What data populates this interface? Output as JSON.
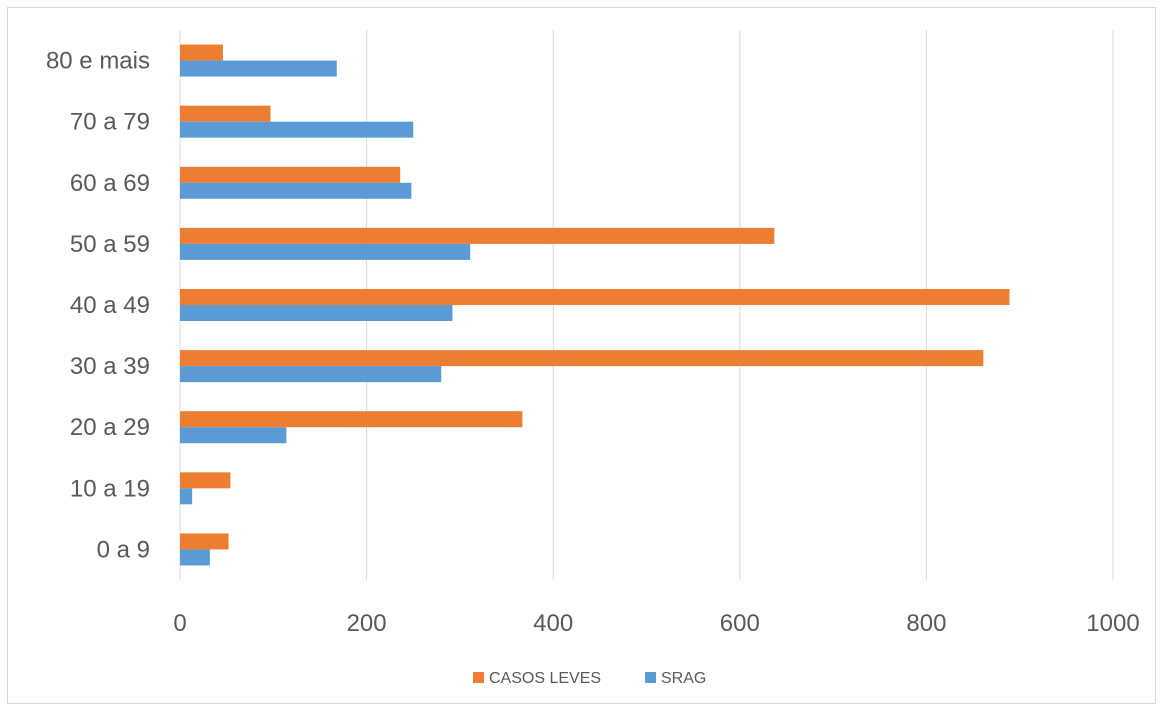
{
  "chart_data": {
    "type": "bar",
    "orientation": "horizontal",
    "categories": [
      "0 a 9",
      "10 a 19",
      "20 a 29",
      "30 a 39",
      "40 a 49",
      "50 a 59",
      "60 a 69",
      "70 a 79",
      "80 e mais"
    ],
    "series": [
      {
        "name": "CASOS LEVES",
        "color": "#ed7d31",
        "values": [
          52,
          54,
          367,
          861,
          889,
          637,
          236,
          97,
          46
        ]
      },
      {
        "name": "SRAG",
        "color": "#5b9bd5",
        "values": [
          32,
          13,
          114,
          280,
          292,
          311,
          248,
          250,
          168
        ]
      }
    ],
    "xlim": [
      0,
      1000
    ],
    "x_ticks": [
      "0",
      "200",
      "400",
      "600",
      "800",
      "1000"
    ],
    "title": "",
    "xlabel": "",
    "ylabel": "",
    "grid": "vertical",
    "legend": {
      "position": "bottom",
      "entries": [
        "CASOS LEVES",
        "SRAG"
      ]
    }
  }
}
